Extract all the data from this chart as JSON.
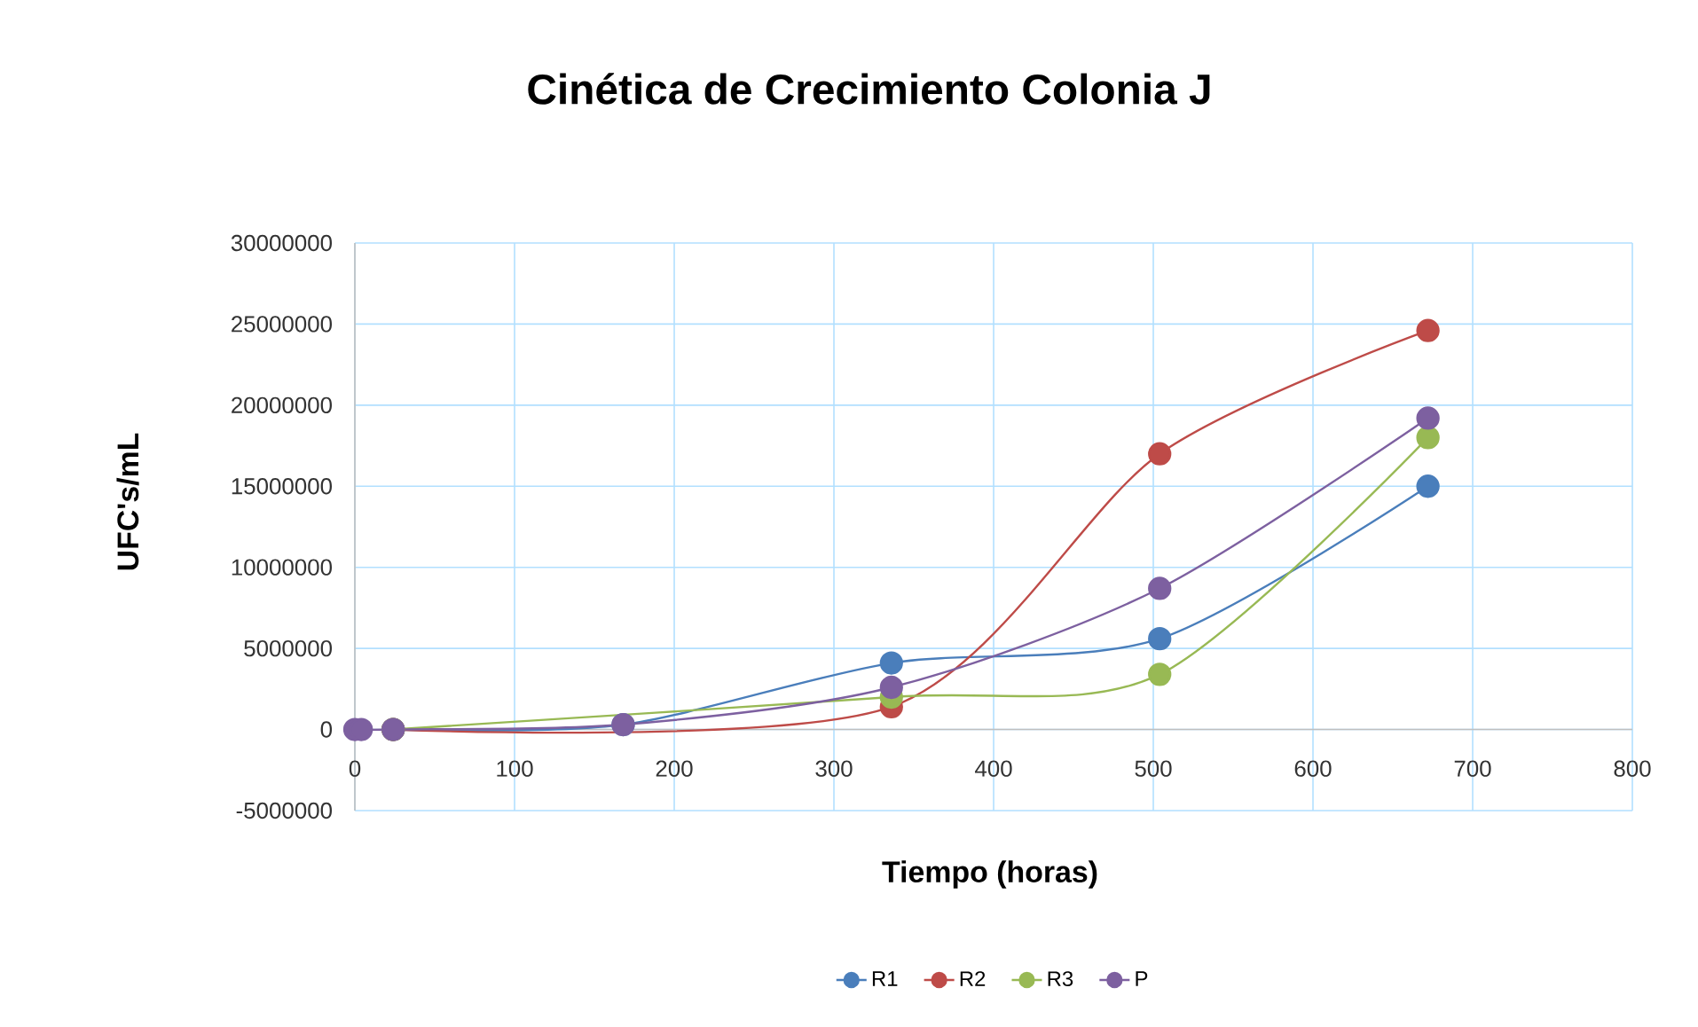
{
  "chart_data": {
    "type": "line",
    "title": "Cinética de Crecimiento Colonia J",
    "xlabel": "Tiempo (horas)",
    "ylabel": "UFC's/mL",
    "x": [
      0,
      4,
      24,
      168,
      336,
      504,
      672
    ],
    "series": [
      {
        "name": "R1",
        "color": "#4a7ebb",
        "values": [
          null,
          null,
          0,
          300000,
          4100000,
          5600000,
          15000000
        ]
      },
      {
        "name": "R2",
        "color": "#be4b48",
        "values": [
          null,
          null,
          0,
          null,
          1400000,
          17000000,
          24600000
        ]
      },
      {
        "name": "R3",
        "color": "#98b954",
        "values": [
          null,
          null,
          0,
          null,
          2000000,
          3400000,
          18000000
        ]
      },
      {
        "name": "P",
        "color": "#7d60a0",
        "values": [
          0,
          0,
          0,
          300000,
          2600000,
          8700000,
          19200000
        ]
      }
    ],
    "xlim": [
      0,
      800
    ],
    "xticks": [
      0,
      100,
      200,
      300,
      400,
      500,
      600,
      700,
      800
    ],
    "ylim": [
      -5000000,
      30000000
    ],
    "yticks": [
      -5000000,
      0,
      5000000,
      10000000,
      15000000,
      20000000,
      25000000,
      30000000
    ],
    "grid": true,
    "legend": "bottom",
    "marker": "circle",
    "line_style": "solid"
  }
}
